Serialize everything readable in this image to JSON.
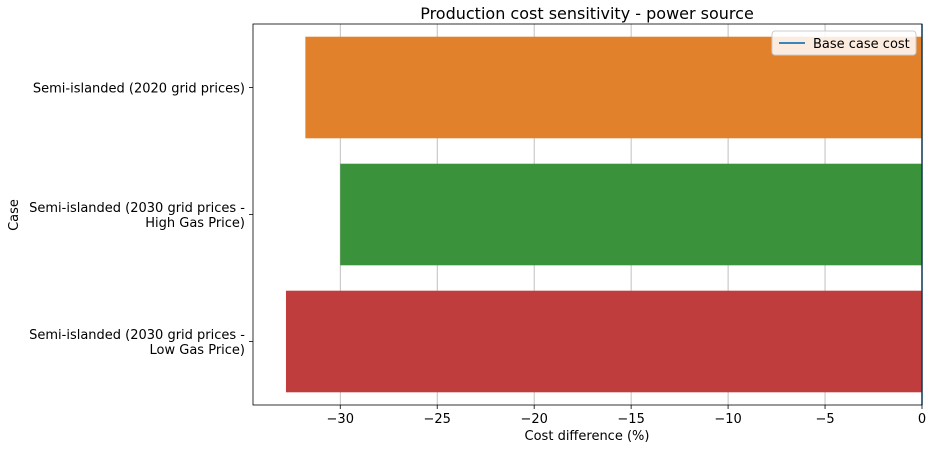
{
  "chart_data": {
    "type": "bar",
    "orientation": "horizontal",
    "title": "Production cost sensitivity - power source",
    "xlabel": "Cost difference (%)",
    "ylabel": "Case",
    "xlim": [
      -34.5,
      0
    ],
    "xticks": [
      -30,
      -25,
      -20,
      -15,
      -10,
      -5,
      0
    ],
    "xtick_labels": [
      "−30",
      "−25",
      "−20",
      "−15",
      "−10",
      "−5",
      "0"
    ],
    "grid": "vertical",
    "categories": [
      [
        "Semi-islanded (2020 grid prices)"
      ],
      [
        "Semi-islanded (2030 grid prices -",
        "High Gas Price)"
      ],
      [
        "Semi-islanded (2030 grid prices -",
        "Low Gas Price)"
      ]
    ],
    "values": [
      -31.8,
      -30.0,
      -32.8
    ],
    "colors": [
      "#e1812c",
      "#3a923a",
      "#c03d3e"
    ],
    "reference_line": {
      "value": 0,
      "color": "#1f77b4",
      "name": "Base case cost"
    },
    "legend": {
      "position": "top-right",
      "entries": [
        "Base case cost"
      ]
    }
  }
}
